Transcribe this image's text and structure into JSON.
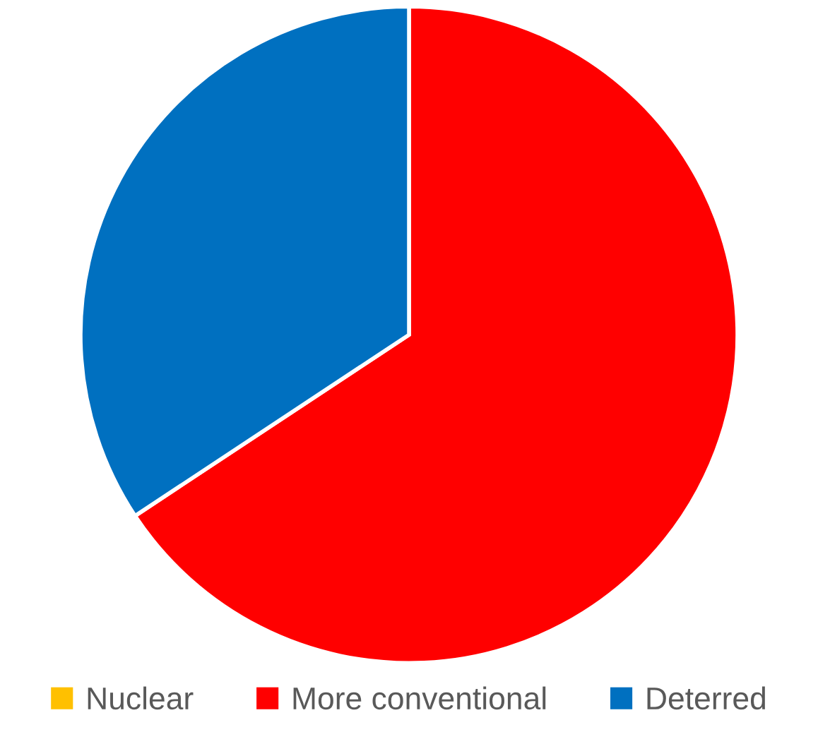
{
  "chart_data": {
    "type": "pie",
    "categories": [
      "Nuclear",
      "More conventional",
      "Deterred"
    ],
    "values": [
      0,
      65.7,
      34.3
    ],
    "colors": [
      "#ffc000",
      "#ff0000",
      "#0070c0"
    ],
    "legend": "bottom"
  }
}
